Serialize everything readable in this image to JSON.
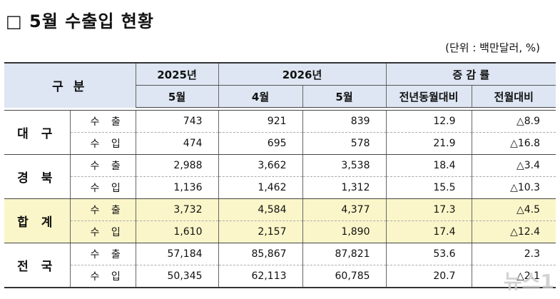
{
  "title": "□ 5월 수출입 현황",
  "unit": "(단위 : 백만달러, %)",
  "header": {
    "category": "구 분",
    "year_2025": "2025년",
    "year_2026": "2026년",
    "rate": "증 감 률",
    "may_2025": "5월",
    "apr_2026": "4월",
    "may_2026": "5월",
    "yoy": "전년동월대비",
    "mom": "전월대비"
  },
  "rows": [
    {
      "region": "대 구",
      "kind": "수 출",
      "may2025": "743",
      "apr2026": "921",
      "may2026": "839",
      "yoy": "12.9",
      "mom": "△8.9"
    },
    {
      "region": "",
      "kind": "수 입",
      "may2025": "474",
      "apr2026": "695",
      "may2026": "578",
      "yoy": "21.9",
      "mom": "△16.8"
    },
    {
      "region": "경 북",
      "kind": "수 출",
      "may2025": "2,988",
      "apr2026": "3,662",
      "may2026": "3,538",
      "yoy": "18.4",
      "mom": "△3.4"
    },
    {
      "region": "",
      "kind": "수 입",
      "may2025": "1,136",
      "apr2026": "1,462",
      "may2026": "1,312",
      "yoy": "15.5",
      "mom": "△10.3"
    },
    {
      "region": "합 계",
      "kind": "수 출",
      "may2025": "3,732",
      "apr2026": "4,584",
      "may2026": "4,377",
      "yoy": "17.3",
      "mom": "△4.5"
    },
    {
      "region": "",
      "kind": "수 입",
      "may2025": "1,610",
      "apr2026": "2,157",
      "may2026": "1,890",
      "yoy": "17.4",
      "mom": "△12.4"
    },
    {
      "region": "전 국",
      "kind": "수 출",
      "may2025": "57,184",
      "apr2026": "85,867",
      "may2026": "87,821",
      "yoy": "53.6",
      "mom": "2.3"
    },
    {
      "region": "",
      "kind": "수 입",
      "may2025": "50,345",
      "apr2026": "62,113",
      "may2026": "60,785",
      "yoy": "20.7",
      "mom": "△2.1"
    }
  ],
  "watermark": "뉴스1"
}
